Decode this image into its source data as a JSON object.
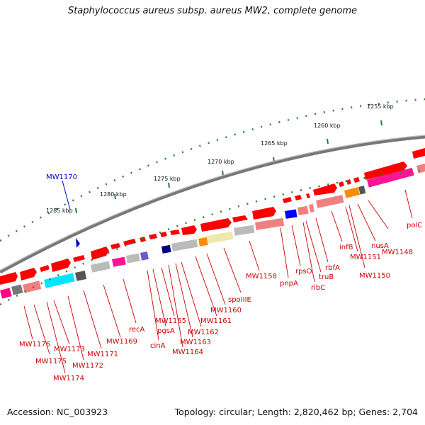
{
  "title": "Staphylococcus aureus subsp. aureus MW2, complete genome",
  "accession": "Accession: NC_003923",
  "summary": "Topology: circular; Length: 2,820,462 bp; Genes: 2,704",
  "colors": {
    "gene": "#ff0000",
    "label": "#cc0000",
    "highlight": "#0000cc",
    "ticks": "#2e7d32",
    "backbone": "#777777"
  },
  "scale_labels": [
    "1285 kbp",
    "1280 kbp",
    "1275 kbp",
    "1270 kbp",
    "1265 kbp",
    "1260 kbp",
    "1255 kbp"
  ],
  "highlighted_gene": "MW1170",
  "gene_labels": [
    "polC",
    "MW1148",
    "nusA",
    "MW1150",
    "MW1151",
    "infB",
    "rbfA",
    "truB",
    "ribC",
    "rpsO",
    "pnpA",
    "MW1158",
    "spoIIIE",
    "MW1160",
    "MW1161",
    "MW1162",
    "MW1163",
    "MW1164",
    "MW1165",
    "pgsA",
    "cinA",
    "recA",
    "MW1169",
    "MW1171",
    "MW1172",
    "MW1173",
    "MW1174",
    "MW1175",
    "MW1176"
  ]
}
